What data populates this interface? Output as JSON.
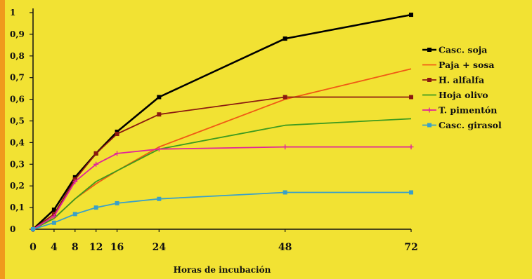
{
  "chart_data": {
    "type": "line",
    "title": "",
    "xlabel": "Horas de incubación",
    "ylabel": "",
    "x": [
      0,
      4,
      8,
      12,
      16,
      24,
      48,
      72
    ],
    "x_ticks": [
      "0",
      "4",
      "8",
      "12",
      "16",
      "24",
      "48",
      "72"
    ],
    "y_ticks": [
      "0",
      "0,1",
      "0,2",
      "0,3",
      "0,4",
      "0,5",
      "0,6",
      "0,7",
      "0,8",
      "0,9",
      "1"
    ],
    "ylim": [
      0,
      1
    ],
    "xlim": [
      0,
      72
    ],
    "grid": false,
    "legend_position": "right",
    "series": [
      {
        "name": "Casc. soja",
        "color": "#000000",
        "marker": "square",
        "values": [
          0,
          0.09,
          0.24,
          0.35,
          0.45,
          0.61,
          0.88,
          0.99
        ]
      },
      {
        "name": "Paja + sosa",
        "color": "#f05a14",
        "marker": "none",
        "values": [
          0,
          0.05,
          0.14,
          0.21,
          0.27,
          0.38,
          0.6,
          0.74
        ]
      },
      {
        "name": "H. alfalfa",
        "color": "#8b1a10",
        "marker": "square",
        "values": [
          0,
          0.07,
          0.23,
          0.35,
          0.44,
          0.53,
          0.61,
          0.61
        ]
      },
      {
        "name": "Hoja olivo",
        "color": "#3d9a1f",
        "marker": "none",
        "values": [
          0,
          0.05,
          0.14,
          0.22,
          0.27,
          0.37,
          0.48,
          0.51
        ]
      },
      {
        "name": "T. pimentón",
        "color": "#e0259a",
        "marker": "plus",
        "values": [
          0,
          0.06,
          0.22,
          0.3,
          0.35,
          0.37,
          0.38,
          0.38
        ]
      },
      {
        "name": "Casc. girasol",
        "color": "#3aa0c8",
        "marker": "square",
        "values": [
          0,
          0.03,
          0.07,
          0.1,
          0.12,
          0.14,
          0.17,
          0.17
        ]
      }
    ]
  }
}
